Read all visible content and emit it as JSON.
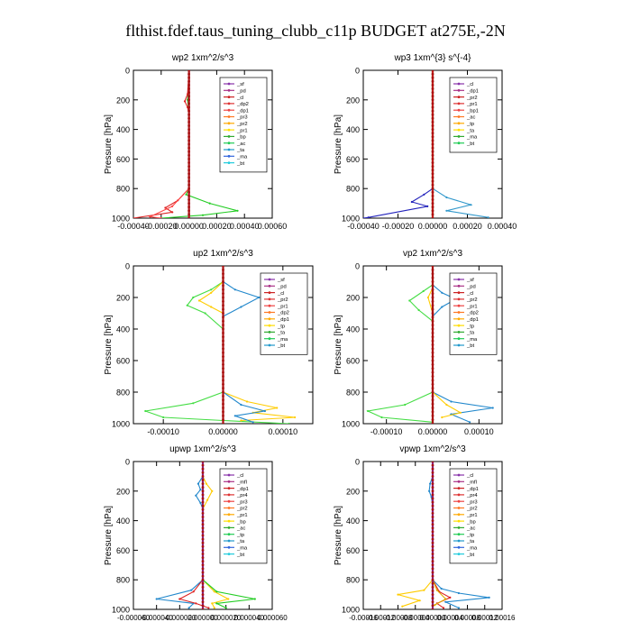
{
  "figure": {
    "title": "flthist.fdef.taus_tuning_clubb_c11p  BUDGET at275E,-2N"
  },
  "chart_data": [
    {
      "type": "line",
      "title": "wp2   1xm^2/s^3",
      "ylabel": "Pressure  [hPa]",
      "ylim": [
        1000,
        0
      ],
      "xlim": [
        -0.0004,
        0.0006
      ],
      "xticks": [
        "-0.00040",
        "-0.00020",
        "0.00000",
        "0.00020",
        "0.00040",
        "0.00060"
      ],
      "yticks": [
        "0",
        "200",
        "400",
        "600",
        "800",
        "1000"
      ],
      "legend": [
        "_sf",
        "_pd",
        "_cl",
        "_dp2",
        "_dp1",
        "_pr3",
        "_pr2",
        "_pr1",
        "_bp",
        "_ac",
        "_ta",
        "_ma",
        "_bt"
      ],
      "series": [
        {
          "name": "_pr1",
          "color": "#22cc22",
          "points": [
            [
              0,
              0
            ],
            [
              0,
              100
            ],
            [
              -1e-05,
              200
            ],
            [
              0,
              300
            ],
            [
              0,
              800
            ],
            [
              -2e-05,
              840
            ],
            [
              0.00015,
              900
            ],
            [
              0.00035,
              950
            ],
            [
              0.0001,
              980
            ],
            [
              -0.0002,
              1000
            ]
          ]
        },
        {
          "name": "_dp1",
          "color": "#dd2222",
          "points": [
            [
              0,
              0
            ],
            [
              -1e-05,
              160
            ],
            [
              -3e-05,
              210
            ],
            [
              -1e-05,
              250
            ],
            [
              0,
              300
            ],
            [
              0,
              800
            ],
            [
              -8e-05,
              880
            ],
            [
              -0.00017,
              930
            ],
            [
              -0.00012,
              960
            ],
            [
              -0.0004,
              1000
            ]
          ]
        },
        {
          "name": "_dp2",
          "color": "#ff4444",
          "points": [
            [
              0,
              0
            ],
            [
              0,
              800
            ],
            [
              -0.00012,
              920
            ],
            [
              -0.00028,
              990
            ],
            [
              -0.0002,
              1000
            ]
          ]
        },
        {
          "name": "_pd",
          "color": "#882288",
          "points": [
            [
              0,
              0
            ],
            [
              0,
              1000
            ]
          ]
        },
        {
          "name": "_cl",
          "color": "#aa2222",
          "points": [
            [
              0,
              0
            ],
            [
              0,
              1000
            ]
          ]
        }
      ]
    },
    {
      "type": "line",
      "title": "wp3   1xm^{3} s^{-4}",
      "ylabel": "Pressure  [hPa]",
      "ylim": [
        1000,
        0
      ],
      "xlim": [
        -0.0004,
        0.0004
      ],
      "xticks": [
        "-0.00040",
        "-0.00020",
        "0.00000",
        "0.00020",
        "0.00040"
      ],
      "yticks": [
        "0",
        "200",
        "400",
        "600",
        "800",
        "1000"
      ],
      "legend": [
        "_cl",
        "_dp1",
        "_pr2",
        "_pr1",
        "_bp1",
        "_ac",
        "_tp",
        "_ta",
        "_ma",
        "_bt"
      ],
      "series": [
        {
          "name": "_tp",
          "color": "#2222bb",
          "points": [
            [
              0,
              0
            ],
            [
              0,
              800
            ],
            [
              -5e-05,
              840
            ],
            [
              -0.00012,
              890
            ],
            [
              -3e-05,
              920
            ],
            [
              -0.00037,
              995
            ],
            [
              -0.0004,
              1000
            ]
          ]
        },
        {
          "name": "_ta",
          "color": "#3399cc",
          "points": [
            [
              0,
              0
            ],
            [
              0,
              800
            ],
            [
              8e-05,
              860
            ],
            [
              0.00022,
              910
            ],
            [
              8e-05,
              950
            ],
            [
              0.00032,
              995
            ]
          ]
        },
        {
          "name": "_bp1",
          "color": "#22aa22",
          "points": [
            [
              0,
              0
            ],
            [
              0,
              1000
            ]
          ]
        },
        {
          "name": "_cl",
          "color": "#cc2222",
          "points": [
            [
              0,
              0
            ],
            [
              0,
              1000
            ]
          ]
        }
      ]
    },
    {
      "type": "line",
      "title": "up2   1xm^2/s^3",
      "ylabel": "Pressure  [hPa]",
      "ylim": [
        1000,
        0
      ],
      "xlim": [
        -0.00015,
        0.00015
      ],
      "xticks": [
        "-0.00010",
        "0.00000",
        "0.00010"
      ],
      "yticks": [
        "0",
        "200",
        "400",
        "600",
        "800",
        "1000"
      ],
      "legend": [
        "_sf",
        "_pd",
        "_cl",
        "_pr2",
        "_pr1",
        "_dp2",
        "_dp1",
        "_tp",
        "_ta",
        "_ma",
        "_bt"
      ],
      "series": [
        {
          "name": "_dp1",
          "color": "#44dd44",
          "points": [
            [
              0,
              0
            ],
            [
              0,
              100
            ],
            [
              -2e-05,
              150
            ],
            [
              -5e-05,
              200
            ],
            [
              -6e-05,
              250
            ],
            [
              -3e-05,
              300
            ],
            [
              0,
              400
            ],
            [
              0,
              800
            ],
            [
              -5e-05,
              870
            ],
            [
              -0.00013,
              920
            ],
            [
              -0.0001,
              960
            ],
            [
              0,
              980
            ],
            [
              0.00011,
              1000
            ]
          ]
        },
        {
          "name": "_pr1",
          "color": "#ffcc00",
          "points": [
            [
              0,
              0
            ],
            [
              0,
              100
            ],
            [
              -2e-05,
              170
            ],
            [
              -4e-05,
              220
            ],
            [
              -2e-05,
              260
            ],
            [
              0,
              300
            ],
            [
              0,
              800
            ],
            [
              4e-05,
              860
            ],
            [
              9e-05,
              900
            ],
            [
              5e-05,
              930
            ],
            [
              0.00012,
              960
            ],
            [
              3e-05,
              980
            ]
          ]
        },
        {
          "name": "_tp",
          "color": "#2288cc",
          "points": [
            [
              0,
              0
            ],
            [
              0,
              100
            ],
            [
              2e-05,
              150
            ],
            [
              6e-05,
              200
            ],
            [
              3e-05,
              260
            ],
            [
              0,
              320
            ],
            [
              0,
              800
            ],
            [
              3e-05,
              880
            ],
            [
              7e-05,
              920
            ],
            [
              2e-05,
              950
            ],
            [
              5e-05,
              990
            ]
          ]
        },
        {
          "name": "_cl",
          "color": "#aa1111",
          "points": [
            [
              0,
              0
            ],
            [
              0,
              1000
            ]
          ]
        }
      ]
    },
    {
      "type": "line",
      "title": "vp2   1xm^2/s^3",
      "ylabel": "Pressure  [hPa]",
      "ylim": [
        1000,
        0
      ],
      "xlim": [
        -0.00015,
        0.00015
      ],
      "xticks": [
        "-0.00010",
        "0.00000",
        "0.00010"
      ],
      "yticks": [
        "0",
        "200",
        "400",
        "600",
        "800",
        "1000"
      ],
      "legend": [
        "_sf",
        "_pd",
        "_cl",
        "_pr2",
        "_pr1",
        "_dp2",
        "_dp1",
        "_tp",
        "_ta",
        "_ma",
        "_bt"
      ],
      "series": [
        {
          "name": "_dp1",
          "color": "#44dd44",
          "points": [
            [
              0,
              0
            ],
            [
              0,
              120
            ],
            [
              -2e-05,
              160
            ],
            [
              -5e-05,
              220
            ],
            [
              -3e-05,
              280
            ],
            [
              0,
              350
            ],
            [
              0,
              800
            ],
            [
              -6e-05,
              880
            ],
            [
              -0.00014,
              920
            ],
            [
              -0.00011,
              960
            ],
            [
              0,
              990
            ]
          ]
        },
        {
          "name": "_tp",
          "color": "#2288cc",
          "points": [
            [
              0,
              0
            ],
            [
              0,
              120
            ],
            [
              2e-05,
              170
            ],
            [
              5e-05,
              210
            ],
            [
              2e-05,
              260
            ],
            [
              0,
              320
            ],
            [
              0,
              800
            ],
            [
              4e-05,
              860
            ],
            [
              0.00013,
              900
            ],
            [
              4e-05,
              940
            ],
            [
              8e-05,
              990
            ]
          ]
        },
        {
          "name": "_pr1",
          "color": "#ffcc00",
          "points": [
            [
              0,
              0
            ],
            [
              0,
              140
            ],
            [
              -1e-05,
              200
            ],
            [
              0,
              300
            ],
            [
              0,
              800
            ],
            [
              3e-05,
              880
            ],
            [
              6e-05,
              930
            ],
            [
              2e-05,
              960
            ]
          ]
        },
        {
          "name": "_cl",
          "color": "#aa1111",
          "points": [
            [
              0,
              0
            ],
            [
              0,
              1000
            ]
          ]
        }
      ]
    },
    {
      "type": "line",
      "title": "upwp   1xm^2/s^3",
      "ylabel": "Pressure  [hPa]",
      "ylim": [
        1000,
        0
      ],
      "xlim": [
        -6e-05,
        6e-05
      ],
      "xticks": [
        "-0.000060",
        "-0.000040",
        "-0.000020",
        "0.000000",
        "0.000020",
        "0.000040",
        "0.000060"
      ],
      "yticks": [
        "0",
        "200",
        "400",
        "600",
        "800",
        "1000"
      ],
      "legend": [
        "_cl",
        "_mfl",
        "_dp1",
        "_pr4",
        "_pr3",
        "_pr2",
        "_pr1",
        "_bp",
        "_ac",
        "_tp",
        "_ta",
        "_ma",
        "_bt"
      ],
      "series": [
        {
          "name": "_pr4",
          "color": "#ffcc00",
          "points": [
            [
              0,
              0
            ],
            [
              0,
              100
            ],
            [
              3e-06,
              150
            ],
            [
              8e-06,
              200
            ],
            [
              4e-06,
              260
            ],
            [
              0,
              320
            ],
            [
              0,
              800
            ],
            [
              1e-05,
              880
            ],
            [
              2.2e-05,
              930
            ],
            [
              8e-06,
              960
            ],
            [
              1e-05,
              990
            ]
          ]
        },
        {
          "name": "_tp",
          "color": "#2288cc",
          "points": [
            [
              0,
              0
            ],
            [
              0,
              100
            ],
            [
              -4e-06,
              150
            ],
            [
              -2e-06,
              190
            ],
            [
              -6e-06,
              230
            ],
            [
              -2e-06,
              280
            ],
            [
              0,
              320
            ],
            [
              0,
              800
            ],
            [
              -1e-05,
              870
            ],
            [
              -4e-05,
              930
            ],
            [
              -8e-06,
              960
            ],
            [
              -1.2e-05,
              990
            ]
          ]
        },
        {
          "name": "_ac",
          "color": "#22cc22",
          "points": [
            [
              0,
              0
            ],
            [
              0,
              800
            ],
            [
              1.2e-05,
              880
            ],
            [
              4.5e-05,
              930
            ],
            [
              1.2e-05,
              960
            ],
            [
              2e-05,
              990
            ]
          ]
        },
        {
          "name": "_dp1",
          "color": "#dd2222",
          "points": [
            [
              0,
              0
            ],
            [
              0,
              800
            ],
            [
              -8e-06,
              880
            ],
            [
              -2e-05,
              930
            ],
            [
              -6e-06,
              960
            ],
            [
              5e-06,
              990
            ]
          ]
        },
        {
          "name": "_mfl",
          "color": "#882288",
          "points": [
            [
              0,
              0
            ],
            [
              0,
              1000
            ]
          ]
        }
      ]
    },
    {
      "type": "line",
      "title": "vpwp   1xm^2/s^3",
      "ylabel": "Pressure  [hPa]",
      "ylim": [
        1000,
        0
      ],
      "xlim": [
        -0.00016,
        0.00016
      ],
      "xticks": [
        "-0.00016",
        "-0.00012",
        "-0.00008",
        "-0.00004",
        "0.00000",
        "0.00004",
        "0.00008",
        "0.00012",
        "0.00016"
      ],
      "yticks": [
        "0",
        "200",
        "400",
        "600",
        "800",
        "1000"
      ],
      "legend": [
        "_cl",
        "_mfl",
        "_dp1",
        "_pr4",
        "_pr3",
        "_pr2",
        "_pr1",
        "_bp",
        "_ac",
        "_tp",
        "_ta",
        "_ma",
        "_bt"
      ],
      "series": [
        {
          "name": "_tp",
          "color": "#2288cc",
          "points": [
            [
              0,
              0
            ],
            [
              0,
              100
            ],
            [
              -6e-06,
              150
            ],
            [
              -8e-06,
              200
            ],
            [
              -3e-06,
              240
            ],
            [
              0,
              300
            ],
            [
              0,
              800
            ],
            [
              2e-05,
              860
            ],
            [
              6e-05,
              890
            ],
            [
              0.00013,
              920
            ],
            [
              3e-05,
              950
            ],
            [
              6e-05,
              990
            ]
          ]
        },
        {
          "name": "_pr4",
          "color": "#ffcc00",
          "points": [
            [
              0,
              0
            ],
            [
              0,
              800
            ],
            [
              -2e-05,
              870
            ],
            [
              -8e-05,
              900
            ],
            [
              -3e-05,
              940
            ],
            [
              -7e-05,
              980
            ]
          ]
        },
        {
          "name": "_dp1",
          "color": "#dd2222",
          "points": [
            [
              0,
              0
            ],
            [
              0,
              800
            ],
            [
              1.5e-05,
              880
            ],
            [
              4e-05,
              920
            ],
            [
              1e-05,
              960
            ],
            [
              2.5e-05,
              990
            ]
          ]
        },
        {
          "name": "_pr2",
          "color": "#ddaa00",
          "points": [
            [
              0,
              0
            ],
            [
              0,
              800
            ],
            [
              1e-05,
              870
            ],
            [
              3e-05,
              930
            ],
            [
              5e-06,
              970
            ]
          ]
        },
        {
          "name": "_mfl",
          "color": "#882288",
          "points": [
            [
              0,
              0
            ],
            [
              0,
              1000
            ]
          ]
        }
      ]
    }
  ]
}
